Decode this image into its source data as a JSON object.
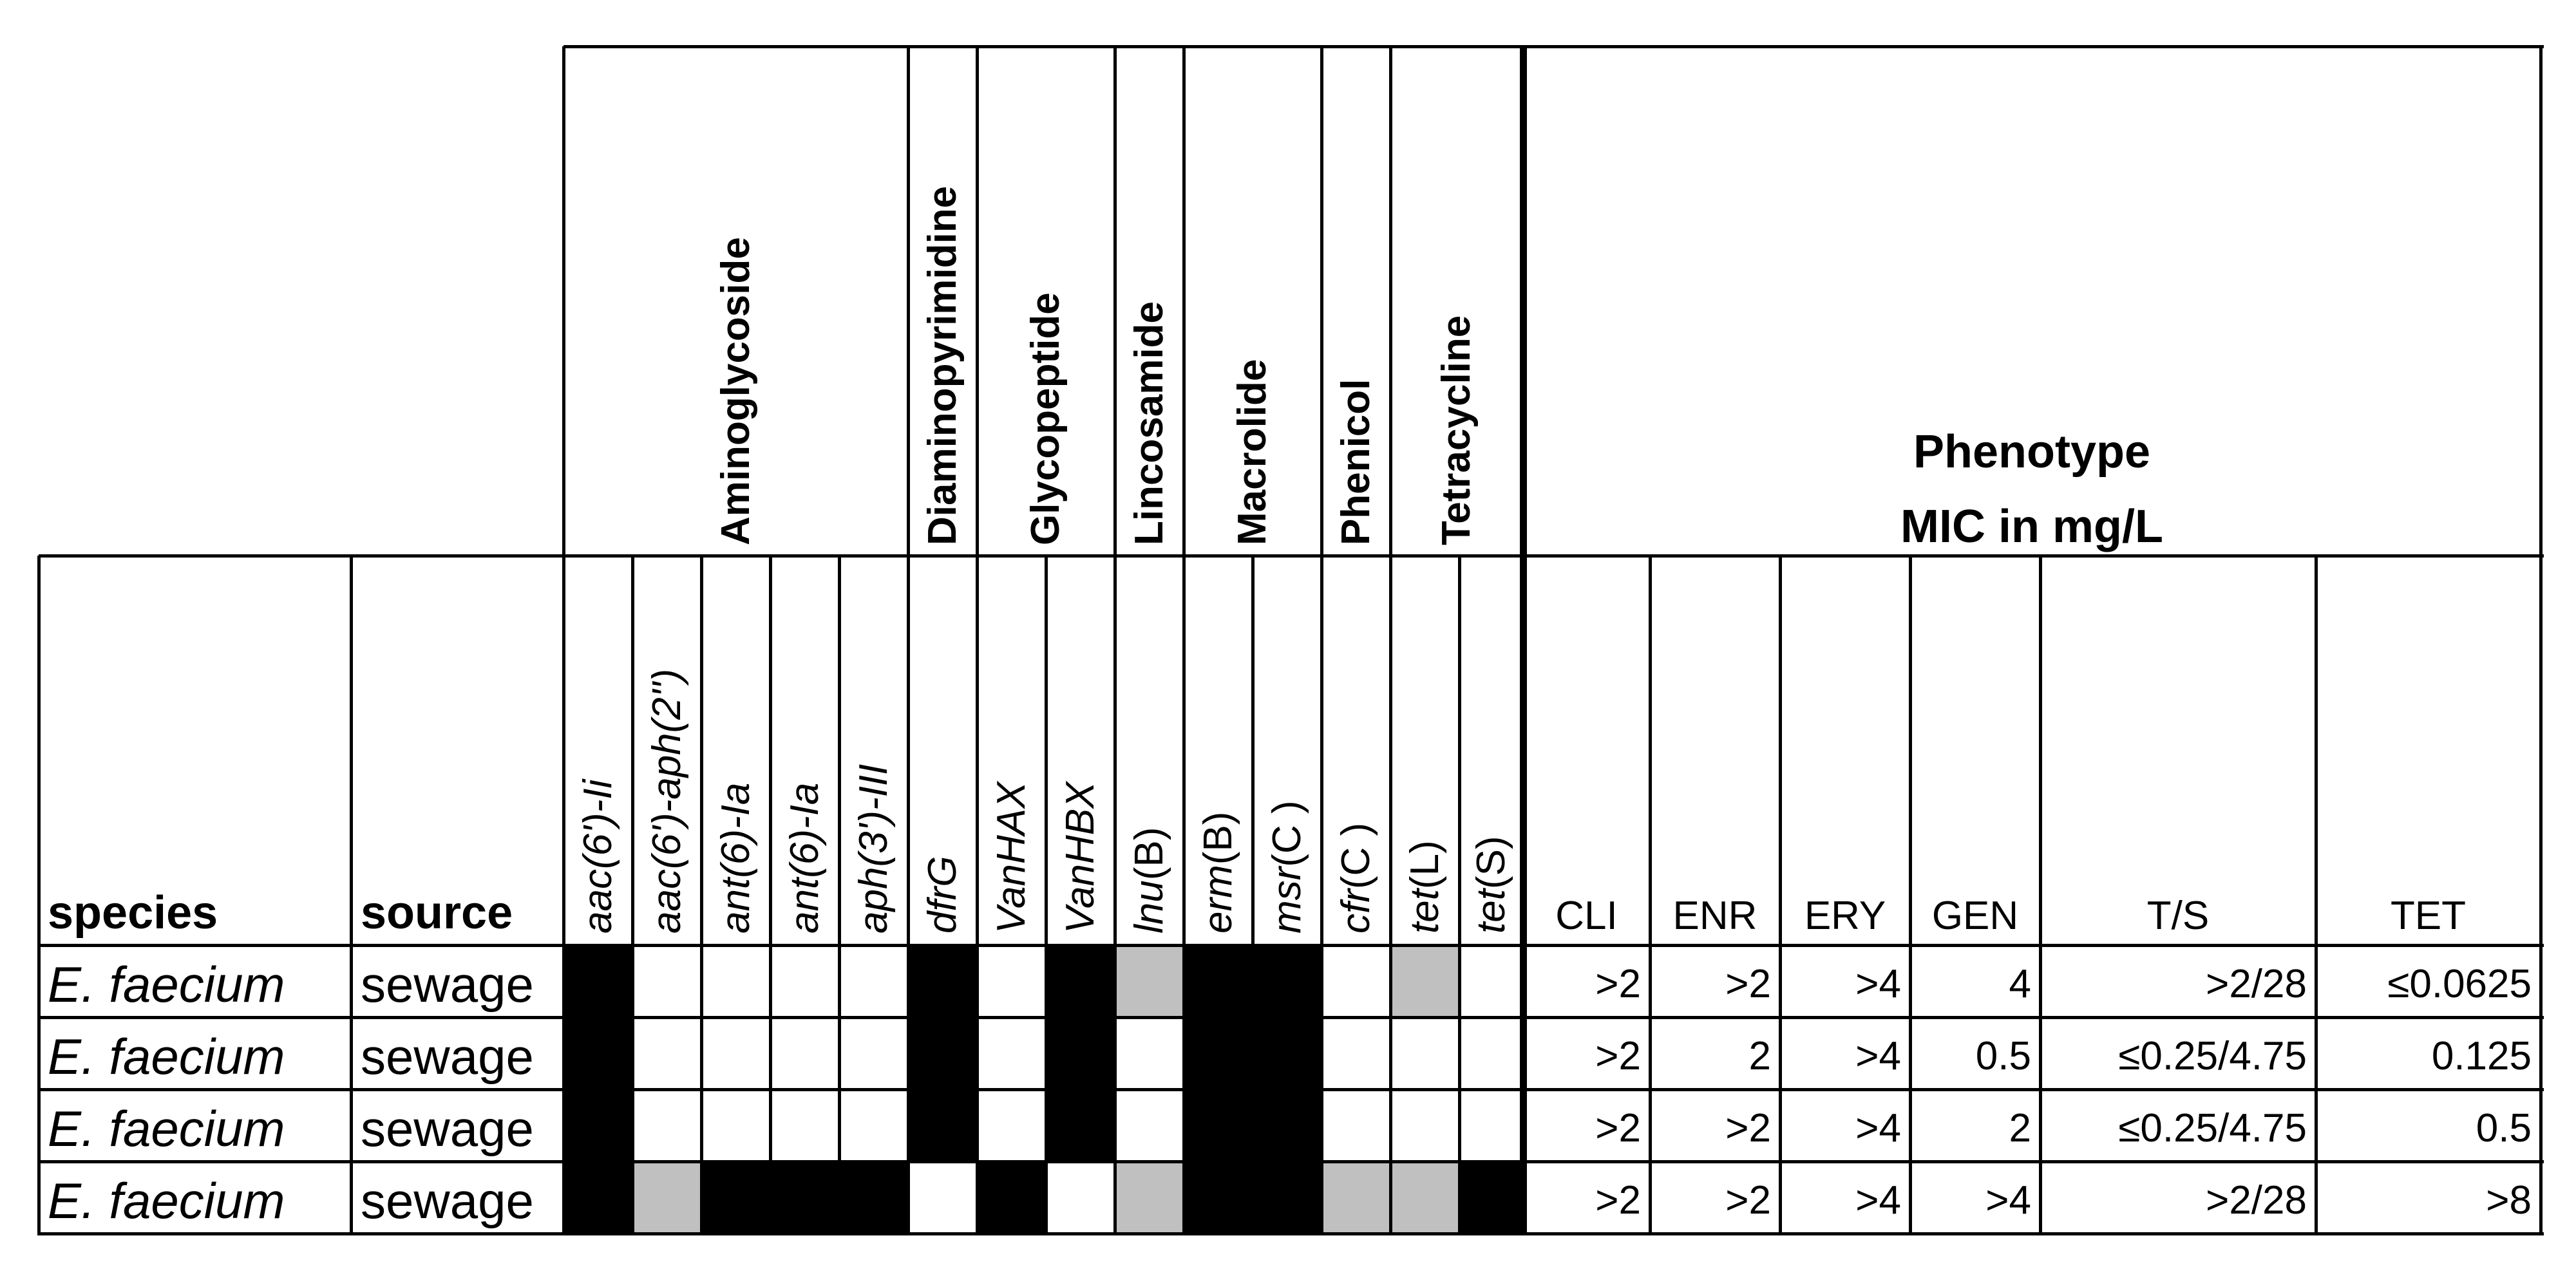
{
  "colors": {
    "present": "#000000",
    "partial": "#c0c0c0",
    "absent": "#ffffff",
    "line": "#000000"
  },
  "header": {
    "species_label": "species",
    "source_label": "source",
    "phenotype_title": "Phenotype",
    "phenotype_subtitle": "MIC in mg/L"
  },
  "classes": [
    {
      "name": "Aminoglycoside",
      "genes": [
        {
          "parts": [
            {
              "t": "aac(6')-Ii",
              "i": true
            }
          ]
        },
        {
          "parts": [
            {
              "t": "aac(6')-aph(2'')",
              "i": true
            }
          ]
        },
        {
          "parts": [
            {
              "t": "ant(6)-Ia",
              "i": true
            }
          ]
        },
        {
          "parts": [
            {
              "t": "ant(6)-Ia",
              "i": true
            }
          ]
        },
        {
          "parts": [
            {
              "t": "aph(3')-III",
              "i": true
            }
          ]
        }
      ]
    },
    {
      "name": "Diaminopyrimidine",
      "genes": [
        {
          "parts": [
            {
              "t": "dfrG",
              "i": true
            }
          ]
        }
      ]
    },
    {
      "name": "Glycopeptide",
      "genes": [
        {
          "parts": [
            {
              "t": "VanHAX",
              "i": true
            }
          ]
        },
        {
          "parts": [
            {
              "t": "VanHBX",
              "i": true
            }
          ]
        }
      ]
    },
    {
      "name": "Lincosamide",
      "genes": [
        {
          "parts": [
            {
              "t": "lnu",
              "i": true
            },
            {
              "t": "(B)",
              "i": false
            }
          ]
        }
      ]
    },
    {
      "name": "Macrolide",
      "genes": [
        {
          "parts": [
            {
              "t": "erm",
              "i": true
            },
            {
              "t": "(B)",
              "i": false
            }
          ]
        },
        {
          "parts": [
            {
              "t": "msr",
              "i": true
            },
            {
              "t": "(C )",
              "i": false
            }
          ]
        }
      ]
    },
    {
      "name": "Phenicol",
      "genes": [
        {
          "parts": [
            {
              "t": "cfr",
              "i": true
            },
            {
              "t": "(C )",
              "i": false
            }
          ]
        }
      ]
    },
    {
      "name": "Tetracycline",
      "genes": [
        {
          "parts": [
            {
              "t": "tet",
              "i": true
            },
            {
              "t": "(L)",
              "i": false
            }
          ]
        },
        {
          "parts": [
            {
              "t": "tet",
              "i": true
            },
            {
              "t": "(S)",
              "i": false
            }
          ]
        }
      ]
    }
  ],
  "mic_columns": [
    "CLI",
    "ENR",
    "ERY",
    "GEN",
    "T/S",
    "TET"
  ],
  "rows": [
    {
      "species": "E. faecium",
      "source": "sewage",
      "genes": [
        2,
        0,
        0,
        0,
        0,
        2,
        0,
        2,
        1,
        2,
        2,
        0,
        1,
        0
      ],
      "mic": [
        ">2",
        ">2",
        ">4",
        "4",
        ">2/28",
        "≤0.0625"
      ]
    },
    {
      "species": "E. faecium",
      "source": "sewage",
      "genes": [
        2,
        0,
        0,
        0,
        0,
        2,
        0,
        2,
        0,
        2,
        2,
        0,
        0,
        0
      ],
      "mic": [
        ">2",
        "2",
        ">4",
        "0.5",
        "≤0.25/4.75",
        "0.125"
      ]
    },
    {
      "species": "E. faecium",
      "source": "sewage",
      "genes": [
        2,
        0,
        0,
        0,
        0,
        2,
        0,
        2,
        0,
        2,
        2,
        0,
        0,
        0
      ],
      "mic": [
        ">2",
        ">2",
        ">4",
        "2",
        "≤0.25/4.75",
        "0.5"
      ]
    },
    {
      "species": "E. faecium",
      "source": "sewage",
      "genes": [
        2,
        1,
        2,
        2,
        2,
        0,
        2,
        0,
        1,
        2,
        2,
        1,
        1,
        2
      ],
      "mic": [
        ">2",
        ">2",
        ">4",
        ">4",
        ">2/28",
        ">8"
      ]
    }
  ]
}
